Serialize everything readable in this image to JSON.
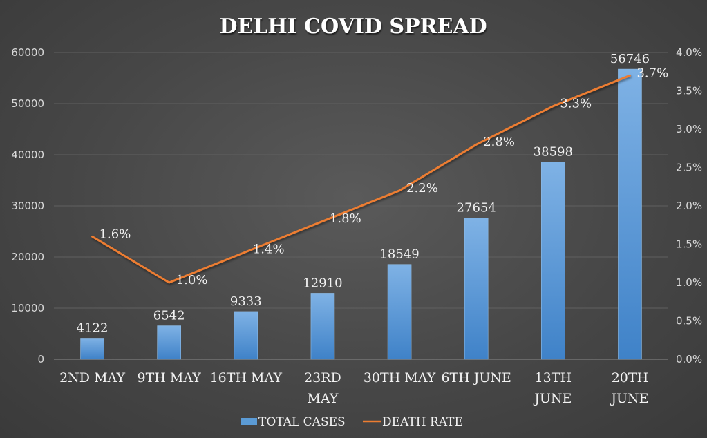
{
  "chart_data": {
    "type": "bar+line",
    "title": "DELHI COVID SPREAD",
    "categories": [
      [
        "2ND MAY"
      ],
      [
        "9TH MAY"
      ],
      [
        "16TH MAY"
      ],
      [
        "23RD",
        "MAY"
      ],
      [
        "30TH MAY"
      ],
      [
        "6TH JUNE"
      ],
      [
        "13TH",
        "JUNE"
      ],
      [
        "20TH",
        "JUNE"
      ]
    ],
    "series": [
      {
        "name": "TOTAL CASES",
        "type": "bar",
        "axis": "left",
        "color": "#5b9bd5",
        "values": [
          4122,
          6542,
          9333,
          12910,
          18549,
          27654,
          38598,
          56746
        ],
        "labels": [
          "4122",
          "6542",
          "9333",
          "12910",
          "18549",
          "27654",
          "38598",
          "56746"
        ]
      },
      {
        "name": "DEATH RATE",
        "type": "line",
        "axis": "right",
        "color": "#ed7d31",
        "values": [
          0.016,
          0.01,
          0.014,
          0.018,
          0.022,
          0.028,
          0.033,
          0.037
        ],
        "labels": [
          "1.6%",
          "1.0%",
          "1.4%",
          "1.8%",
          "2.2%",
          "2.8%",
          "3.3%",
          "3.7%"
        ]
      }
    ],
    "y_left": {
      "ylim": [
        0,
        60000
      ],
      "ticks": [
        "0",
        "10000",
        "20000",
        "30000",
        "40000",
        "50000",
        "60000"
      ]
    },
    "y_right": {
      "ylim": [
        0,
        0.04
      ],
      "ticks": [
        "0.0%",
        "0.5%",
        "1.0%",
        "1.5%",
        "2.0%",
        "2.5%",
        "3.0%",
        "3.5%",
        "4.0%"
      ]
    },
    "grid": true,
    "legend": "bottom"
  }
}
